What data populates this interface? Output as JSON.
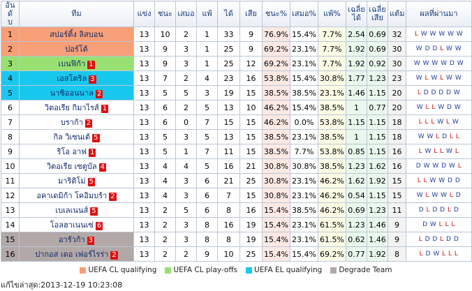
{
  "headers": {
    "rank": "อันดั\nบ",
    "team": "ทีม",
    "played": "แข่ง",
    "won": "ชนะ",
    "drawn": "เสมอ",
    "lost": "แพ้",
    "gf": "ได้",
    "ga": "เสีย",
    "win_pct": "ชนะ%",
    "draw_pct": "เสมอ%",
    "loss_pct": "แพ้%",
    "avg_gf": "เฉลี่ย\nได้",
    "avg_ga": "เฉลี่ย\nเสีย",
    "points": "แต้ม",
    "form": "ผลที่ผ่านมา"
  },
  "colors": {
    "cl_qualifying": "#f79f77",
    "cl_playoffs": "#99e073",
    "el_qualifying": "#19c8ef",
    "degrade": "#b3a8a8"
  },
  "rows": [
    {
      "rank": "1",
      "team": "สปอร์ติ้ง ลิสบอน",
      "badge": "",
      "zone": "cl_qualifying",
      "p": "13",
      "w": "10",
      "d": "2",
      "l": "1",
      "gf": "33",
      "ga": "9",
      "wp": "76.9%",
      "dp": "15.4%",
      "lp": "7.7%",
      "agf": "2.54",
      "aga": "0.69",
      "pts": "32",
      "form": "LWWWWW"
    },
    {
      "rank": "2",
      "team": "ปอร์โต้",
      "badge": "",
      "zone": "cl_qualifying",
      "p": "13",
      "w": "9",
      "d": "3",
      "l": "1",
      "gf": "25",
      "ga": "9",
      "wp": "69.2%",
      "dp": "23.1%",
      "lp": "7.7%",
      "agf": "1.92",
      "aga": "0.69",
      "pts": "30",
      "form": "WDDLWW"
    },
    {
      "rank": "3",
      "team": "เบนฟิก้า",
      "badge": "1",
      "zone": "cl_playoffs",
      "p": "13",
      "w": "9",
      "d": "3",
      "l": "1",
      "gf": "25",
      "ga": "12",
      "wp": "69.2%",
      "dp": "23.1%",
      "lp": "7.7%",
      "agf": "1.92",
      "aga": "0.92",
      "pts": "30",
      "form": "WWWWDW"
    },
    {
      "rank": "4",
      "team": "เอสโตริล",
      "badge": "3",
      "zone": "el_qualifying",
      "p": "13",
      "w": "7",
      "d": "2",
      "l": "4",
      "gf": "23",
      "ga": "16",
      "wp": "53.8%",
      "dp": "15.4%",
      "lp": "30.8%",
      "agf": "1.77",
      "aga": "1.23",
      "pts": "23",
      "form": "WLWLWW"
    },
    {
      "rank": "5",
      "team": "นาซิออนนาล",
      "badge": "2",
      "zone": "el_qualifying",
      "p": "13",
      "w": "5",
      "d": "5",
      "l": "3",
      "gf": "19",
      "ga": "15",
      "wp": "38.5%",
      "dp": "38.5%",
      "lp": "23.1%",
      "agf": "1.46",
      "aga": "1.15",
      "pts": "20",
      "form": "LDDDDW"
    },
    {
      "rank": "6",
      "team": "วิตอเรีย กิมาไรส์",
      "badge": "1",
      "zone": "",
      "p": "13",
      "w": "6",
      "d": "2",
      "l": "5",
      "gf": "13",
      "ga": "10",
      "wp": "46.2%",
      "dp": "15.4%",
      "lp": "38.5%",
      "agf": "1",
      "aga": "0.77",
      "pts": "20",
      "form": "WLLWDW"
    },
    {
      "rank": "7",
      "team": "บราก้า",
      "badge": "2",
      "zone": "",
      "p": "13",
      "w": "6",
      "d": "0",
      "l": "7",
      "gf": "15",
      "ga": "15",
      "wp": "46.2%",
      "dp": "0.0%",
      "lp": "53.8%",
      "agf": "1.15",
      "aga": "1.15",
      "pts": "18",
      "form": "LLLWLW"
    },
    {
      "rank": "8",
      "team": "กิล วิเซนเต้",
      "badge": "5",
      "zone": "",
      "p": "13",
      "w": "5",
      "d": "3",
      "l": "5",
      "gf": "13",
      "ga": "15",
      "wp": "38.5%",
      "dp": "23.1%",
      "lp": "38.5%",
      "agf": "1",
      "aga": "1.15",
      "pts": "18",
      "form": "WWLDLL"
    },
    {
      "rank": "9",
      "team": "ริโอ อาฟ",
      "badge": "1",
      "zone": "",
      "p": "13",
      "w": "5",
      "d": "1",
      "l": "7",
      "gf": "11",
      "ga": "15",
      "wp": "38.5%",
      "dp": "7.7%",
      "lp": "53.8%",
      "agf": "0.85",
      "aga": "1.15",
      "pts": "16",
      "form": "LWLLWL"
    },
    {
      "rank": "10",
      "team": "วิตอเรีย เซตูบัล",
      "badge": "4",
      "zone": "",
      "p": "13",
      "w": "4",
      "d": "4",
      "l": "5",
      "gf": "16",
      "ga": "21",
      "wp": "30.8%",
      "dp": "30.8%",
      "lp": "38.5%",
      "agf": "1.23",
      "aga": "1.62",
      "pts": "16",
      "form": "DWWDWL"
    },
    {
      "rank": "11",
      "team": "มาริติโม่",
      "badge": "5",
      "zone": "",
      "p": "13",
      "w": "4",
      "d": "3",
      "l": "6",
      "gf": "21",
      "ga": "25",
      "wp": "30.8%",
      "dp": "23.1%",
      "lp": "46.2%",
      "agf": "1.62",
      "aga": "1.92",
      "pts": "15",
      "form": "LLWWDD"
    },
    {
      "rank": "12",
      "team": "อคาเดมิก้า โคอิมบร้า",
      "badge": "2",
      "zone": "",
      "p": "13",
      "w": "4",
      "d": "3",
      "l": "6",
      "gf": "7",
      "ga": "15",
      "wp": "30.8%",
      "dp": "23.1%",
      "lp": "46.2%",
      "agf": "0.54",
      "aga": "1.15",
      "pts": "15",
      "form": "WLWWLD"
    },
    {
      "rank": "13",
      "team": "เบเลเนนส์",
      "badge": "5",
      "zone": "",
      "p": "13",
      "w": "2",
      "d": "5",
      "l": "6",
      "gf": "8",
      "ga": "16",
      "wp": "15.4%",
      "dp": "38.5%",
      "lp": "46.2%",
      "agf": "0.69",
      "aga": "1.23",
      "pts": "11",
      "form": "DLDDLD"
    },
    {
      "rank": "14",
      "team": "โอลฮาเนนเซ่",
      "badge": "6",
      "zone": "",
      "p": "13",
      "w": "2",
      "d": "3",
      "l": "8",
      "gf": "16",
      "ga": "19",
      "wp": "15.4%",
      "dp": "23.1%",
      "lp": "61.5%",
      "agf": "1.23",
      "aga": "1.46",
      "pts": "9",
      "form": "DWLLL"
    },
    {
      "rank": "15",
      "team": "อารัวก้า",
      "badge": "3",
      "zone": "degrade",
      "p": "13",
      "w": "2",
      "d": "3",
      "l": "8",
      "gf": "8",
      "ga": "19",
      "wp": "15.4%",
      "dp": "23.1%",
      "lp": "61.5%",
      "agf": "0.62",
      "aga": "1.46",
      "pts": "9",
      "form": "LDDLDD"
    },
    {
      "rank": "16",
      "team": "ปากอส เดอ เฟอร์ไรร่า",
      "badge": "2",
      "zone": "degrade",
      "p": "13",
      "w": "2",
      "d": "2",
      "l": "9",
      "gf": "10",
      "ga": "25",
      "wp": "15.4%",
      "dp": "15.4%",
      "lp": "69.2%",
      "agf": "0.77",
      "aga": "1.92",
      "pts": "8",
      "form": "LDWLLL"
    }
  ],
  "legend": [
    {
      "label": "UEFA CL qualifying",
      "color_key": "cl_qualifying"
    },
    {
      "label": "UEFA CL play-offs",
      "color_key": "cl_playoffs"
    },
    {
      "label": "UEFA EL qualifying",
      "color_key": "el_qualifying"
    },
    {
      "label": "Degrade Team",
      "color_key": "degrade"
    }
  ],
  "updated": "แก้ไขล่าสุด:2013-12-19 10:23:08"
}
